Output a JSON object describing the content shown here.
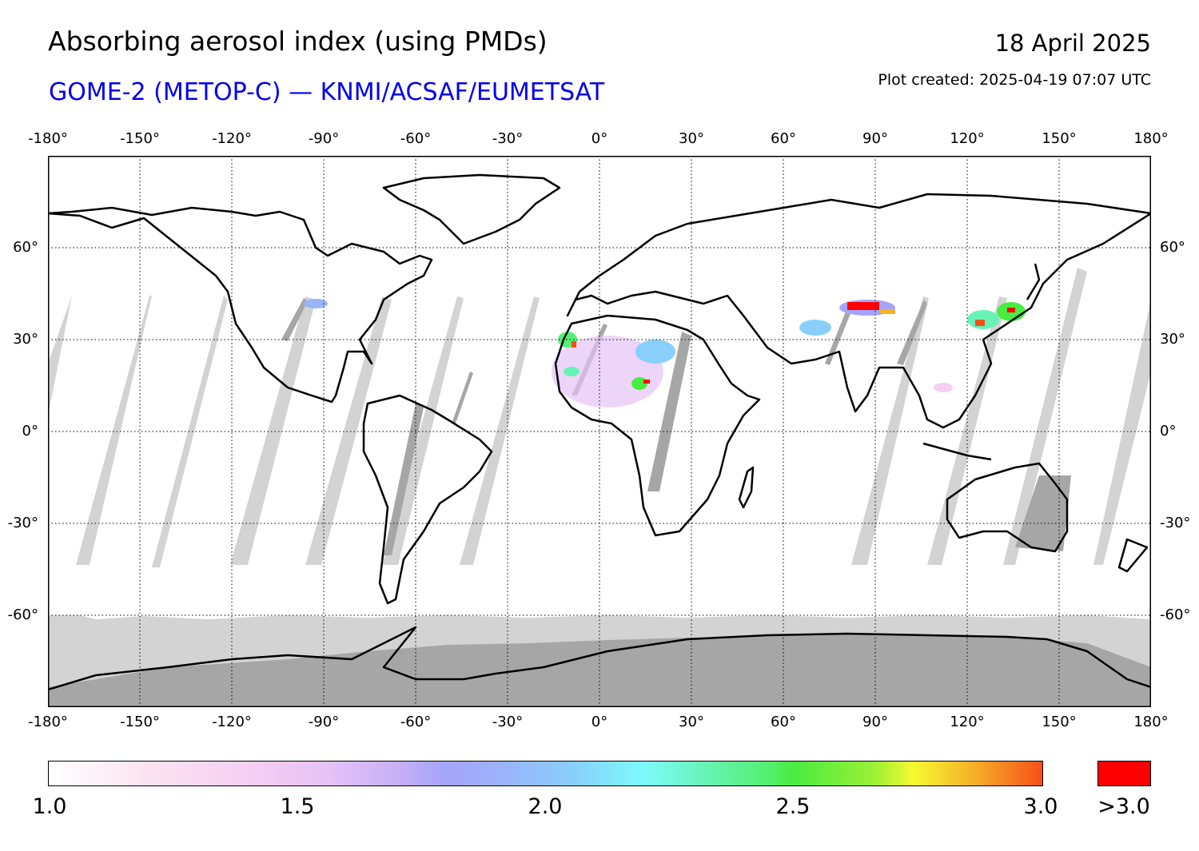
{
  "header": {
    "title": "Absorbing aerosol index (using PMDs)",
    "subtitle": "GOME-2 (METOP-C) — KNMI/ACSAF/EUMETSAT",
    "date": "18 April 2025",
    "created": "Plot created: 2025-04-19 07:07 UTC"
  },
  "axes": {
    "lon_labels": [
      "-180°",
      "-150°",
      "-120°",
      "-90°",
      "-60°",
      "-30°",
      "0°",
      "30°",
      "60°",
      "90°",
      "120°",
      "150°",
      "180°"
    ],
    "lat_labels": [
      "60°",
      "30°",
      "0°",
      "-30°",
      "-60°"
    ],
    "lon_range": [
      -180,
      180
    ],
    "lat_range": [
      -90,
      90
    ],
    "gridlines": "dotted"
  },
  "colorbar": {
    "min_label": "1.0",
    "l15": "1.5",
    "l20": "2.0",
    "l25": "2.5",
    "max_label": "3.0",
    "over_label": ">3.0",
    "over_color": "#ff0000"
  },
  "colors": {
    "no_data": "#d3d3d3",
    "dark_band": "#a6a6a6",
    "coastline": "#000000"
  }
}
